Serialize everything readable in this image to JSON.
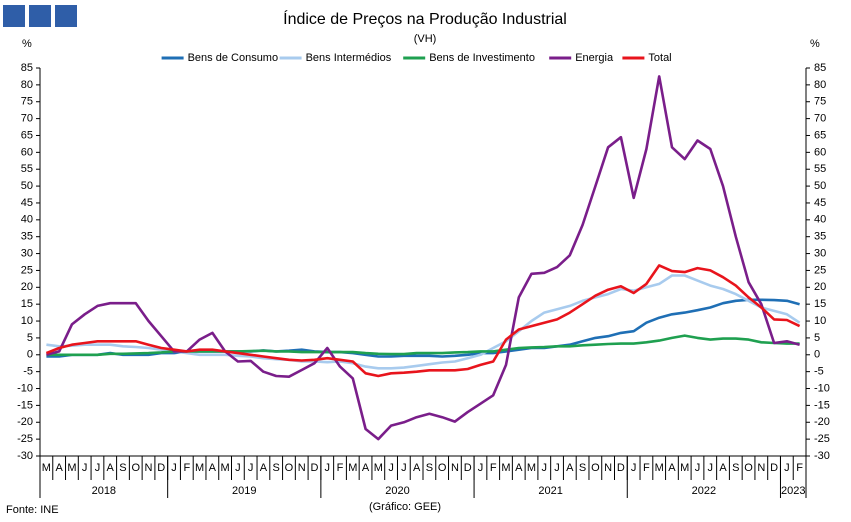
{
  "chart_data": {
    "type": "line",
    "title": "Índice de Preços na Produção Industrial",
    "subtitle": "(VH)",
    "y_label": "%",
    "y2_label": "%",
    "source": "Fonte: INE",
    "note": "(Gráfico: GEE)",
    "categories": [
      "M",
      "A",
      "M",
      "J",
      "J",
      "A",
      "S",
      "O",
      "N",
      "D",
      "J",
      "F",
      "M",
      "A",
      "M",
      "J",
      "J",
      "A",
      "S",
      "O",
      "N",
      "D",
      "J",
      "F",
      "M",
      "A",
      "M",
      "J",
      "J",
      "A",
      "S",
      "O",
      "N",
      "D",
      "J",
      "F",
      "M",
      "A",
      "M",
      "J",
      "J",
      "A",
      "S",
      "O",
      "N",
      "D",
      "J",
      "F",
      "M",
      "A",
      "M",
      "J",
      "J",
      "A",
      "S",
      "O",
      "N",
      "D",
      "J",
      "F"
    ],
    "year_groups": [
      {
        "label": "2018",
        "months": 10
      },
      {
        "label": "2019",
        "months": 12
      },
      {
        "label": "2020",
        "months": 12
      },
      {
        "label": "2021",
        "months": 12
      },
      {
        "label": "2022",
        "months": 12
      },
      {
        "label": "2023",
        "months": 2
      }
    ],
    "ylim": [
      -30,
      85
    ],
    "yticks": [
      -30,
      -25,
      -20,
      -15,
      -10,
      -5,
      0,
      5,
      10,
      15,
      20,
      25,
      30,
      35,
      40,
      45,
      50,
      55,
      60,
      65,
      70,
      75,
      80,
      85
    ],
    "y2lim": [
      -30,
      85
    ],
    "y2ticks": [
      -30,
      -25,
      -20,
      -15,
      -10,
      -5,
      0,
      5,
      10,
      15,
      20,
      25,
      30,
      35,
      40,
      45,
      50,
      55,
      60,
      65,
      70,
      75,
      80,
      85
    ],
    "legend": "top",
    "series": [
      {
        "name": "Bens de Consumo",
        "color": "#1f6fb5",
        "values": [
          -0.5,
          -0.5,
          0,
          0,
          0,
          0.5,
          0,
          0,
          0,
          0.5,
          0.5,
          1,
          1,
          1,
          1,
          1,
          1,
          1.3,
          1,
          1.2,
          1.5,
          1,
          0.8,
          0.8,
          0.5,
          0,
          -0.5,
          -0.5,
          -0.3,
          -0.3,
          -0.3,
          -0.5,
          -0.3,
          0,
          0.5,
          0.5,
          1,
          1.5,
          2,
          2,
          2.5,
          3,
          4,
          5,
          5.5,
          6.5,
          7,
          9.5,
          11,
          12,
          12.5,
          13.2,
          14,
          15.3,
          16,
          16.3,
          16.3,
          16.2,
          16,
          15
        ]
      },
      {
        "name": "Bens Intermédios",
        "color": "#a8cbee",
        "values": [
          3,
          2.5,
          2.7,
          3,
          3,
          3,
          2.5,
          2.3,
          2,
          1.5,
          1,
          0.5,
          0,
          0,
          0,
          -0.3,
          -0.5,
          -1,
          -1.3,
          -1.5,
          -2,
          -2,
          -2.2,
          -2,
          -2.5,
          -3.5,
          -4,
          -4,
          -3.8,
          -3.3,
          -2.8,
          -2.3,
          -2,
          -1,
          0,
          2,
          4,
          7,
          10,
          12.5,
          13.5,
          14.5,
          16,
          17,
          18,
          19.5,
          19,
          20,
          21,
          23.5,
          23.5,
          22,
          20.5,
          19.5,
          18,
          16,
          14,
          13,
          12,
          9.5
        ]
      },
      {
        "name": "Bens de Investimento",
        "color": "#1fa050",
        "values": [
          0,
          0,
          0,
          0,
          0,
          0.3,
          0.3,
          0.4,
          0.5,
          0.7,
          1,
          1,
          1,
          1,
          1,
          1,
          1.1,
          1.2,
          1,
          1,
          0.8,
          0.8,
          0.8,
          0.8,
          0.8,
          0.5,
          0.3,
          0.2,
          0.2,
          0.5,
          0.5,
          0.5,
          0.7,
          0.8,
          1,
          1,
          1.5,
          2,
          2.2,
          2.3,
          2.5,
          2.5,
          2.8,
          3,
          3.2,
          3.3,
          3.3,
          3.7,
          4.2,
          5,
          5.7,
          5,
          4.5,
          4.8,
          4.8,
          4.5,
          3.7,
          3.5,
          3.3,
          3.3
        ]
      },
      {
        "name": "Energia",
        "color": "#7a1e8a",
        "values": [
          0,
          1,
          9,
          12,
          14.5,
          15.3,
          15.3,
          15.3,
          10,
          5.5,
          1,
          1,
          4.5,
          6.5,
          1,
          -2,
          -1.8,
          -5,
          -6.3,
          -6.5,
          -4.5,
          -2.5,
          2,
          -3.5,
          -7,
          -22,
          -25,
          -21,
          -20,
          -18.5,
          -17.5,
          -18.5,
          -19.8,
          -17,
          -14.5,
          -12,
          -3,
          17,
          24,
          24.3,
          26,
          29.5,
          38.5,
          50,
          61.5,
          64.5,
          46.5,
          61,
          82.5,
          61.5,
          58,
          63.5,
          61,
          50,
          35,
          21.5,
          15,
          3.5,
          4,
          3
        ]
      },
      {
        "name": "Total",
        "color": "#e8141c",
        "values": [
          0.5,
          2,
          3,
          3.5,
          4,
          4,
          4,
          4,
          3,
          2,
          1.5,
          1,
          1.5,
          1.5,
          1,
          0.5,
          0,
          -0.5,
          -1,
          -1.5,
          -1.7,
          -1.5,
          -1,
          -1.5,
          -2,
          -5.5,
          -6.3,
          -5.5,
          -5.3,
          -5,
          -4.6,
          -4.6,
          -4.6,
          -4.2,
          -3,
          -2,
          4.5,
          7.5,
          8.5,
          9.5,
          10.5,
          12.5,
          15,
          17.5,
          19.3,
          20.3,
          18.3,
          21,
          26.5,
          24.8,
          24.5,
          25.7,
          25,
          23,
          20.5,
          17,
          14,
          10.5,
          10.3,
          8.5
        ]
      }
    ]
  }
}
